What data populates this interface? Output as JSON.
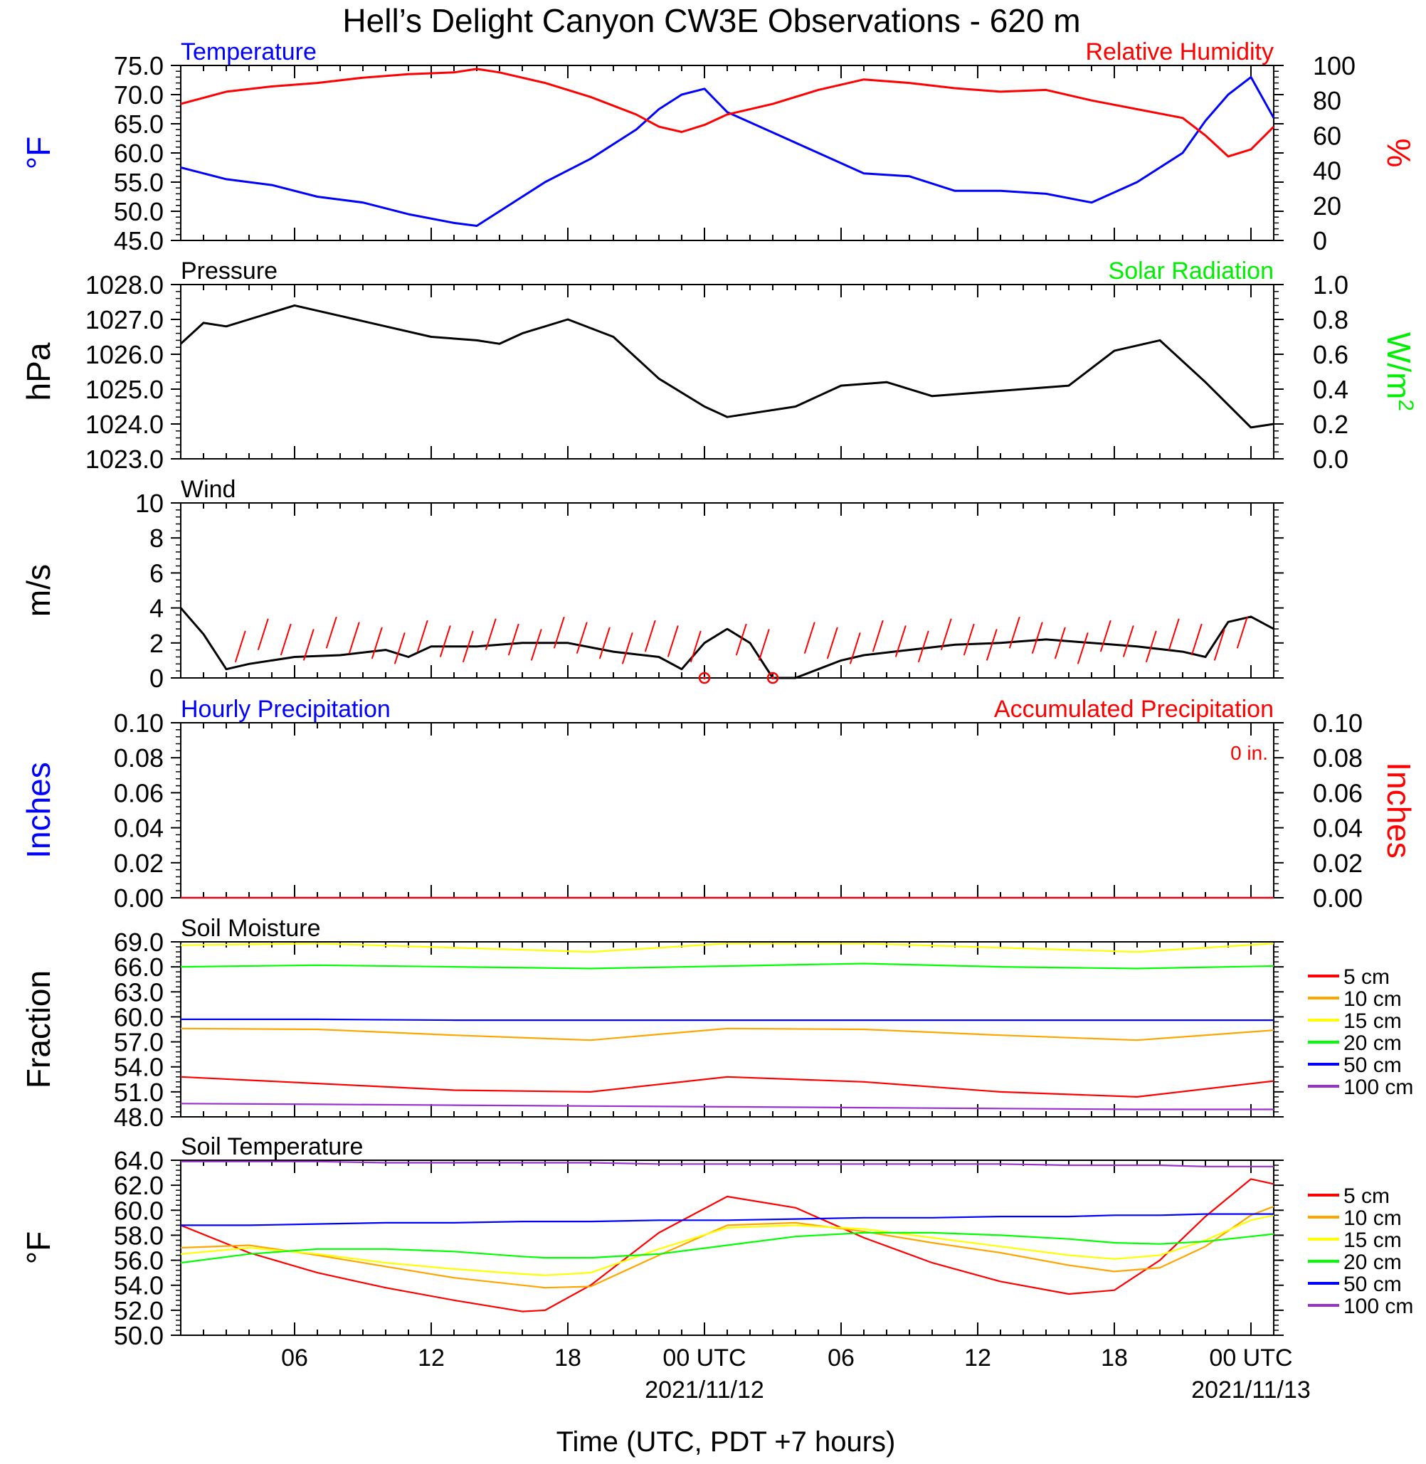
{
  "figure": {
    "title": "Hell’s Delight Canyon CW3E Observations - 620 m",
    "xlabel": "Time (UTC, PDT +7 hours)",
    "x_ticks": [
      "06",
      "12",
      "18",
      "00 UTC",
      "06",
      "12",
      "18",
      "00 UTC"
    ],
    "dates": [
      "2021/11/12",
      "2021/11/13"
    ]
  },
  "chart_data": [
    {
      "type": "line",
      "title_left": "Temperature",
      "title_right": "Relative Humidity",
      "ylabel": "°F",
      "ylabel_right": "%",
      "ylim": [
        45,
        75
      ],
      "ylim_right": [
        0,
        100
      ],
      "y_ticks": [
        "75.0",
        "70.0",
        "65.0",
        "60.0",
        "55.0",
        "50.0",
        "45.0"
      ],
      "y_ticks_right": [
        "100",
        "80",
        "60",
        "40",
        "20",
        "0"
      ],
      "x_hours": [
        1,
        3,
        5,
        7,
        9,
        11,
        13,
        14,
        15,
        17,
        19,
        21,
        22,
        23,
        24,
        25,
        27,
        29,
        31,
        33,
        35,
        37,
        39,
        41,
        43,
        45,
        46,
        47,
        48,
        49
      ],
      "series": [
        {
          "name": "Temperature",
          "color": "#0000ff",
          "axis": "left",
          "values": [
            57.5,
            55.5,
            54.5,
            52.5,
            51.5,
            49.5,
            48.0,
            47.5,
            50.0,
            55.0,
            59.0,
            64.0,
            67.5,
            70.0,
            71.0,
            67.0,
            63.5,
            60.0,
            56.5,
            56.0,
            53.5,
            53.5,
            53.0,
            51.5,
            55.0,
            60.0,
            65.5,
            70.0,
            73.0,
            66.0
          ]
        },
        {
          "name": "Relative Humidity",
          "color": "#ff0000",
          "axis": "right",
          "values": [
            78,
            85,
            88,
            90,
            93,
            95,
            96,
            98,
            96,
            90,
            82,
            72,
            65,
            62,
            66,
            72,
            78,
            86,
            92,
            90,
            87,
            85,
            86,
            80,
            75,
            70,
            60,
            48,
            52,
            65
          ]
        }
      ]
    },
    {
      "type": "line",
      "title_left": "Pressure",
      "title_right": "Solar Radiation",
      "ylabel": "hPa",
      "ylabel_right": "W/m",
      "ylabel_right_sup": "2",
      "ylim": [
        1023,
        1028
      ],
      "ylim_right": [
        0,
        1
      ],
      "y_ticks": [
        "1028.0",
        "1027.0",
        "1026.0",
        "1025.0",
        "1024.0",
        "1023.0"
      ],
      "y_ticks_right": [
        "1.0",
        "0.8",
        "0.6",
        "0.4",
        "0.2",
        "0.0"
      ],
      "x_hours": [
        1,
        2,
        3,
        4,
        6,
        8,
        10,
        12,
        14,
        15,
        16,
        18,
        20,
        22,
        24,
        25,
        26,
        28,
        30,
        32,
        34,
        36,
        38,
        40,
        42,
        44,
        46,
        48,
        49
      ],
      "series": [
        {
          "name": "Pressure",
          "color": "#000000",
          "axis": "left",
          "values": [
            1026.3,
            1026.9,
            1026.8,
            1027.0,
            1027.4,
            1027.1,
            1026.8,
            1026.5,
            1026.4,
            1026.3,
            1026.6,
            1027.0,
            1026.5,
            1025.3,
            1024.5,
            1024.2,
            1024.3,
            1024.5,
            1025.1,
            1025.2,
            1024.8,
            1024.9,
            1025.0,
            1025.1,
            1026.1,
            1026.4,
            1025.2,
            1023.9,
            1024.0
          ]
        }
      ]
    },
    {
      "type": "line",
      "title_left": "Wind",
      "ylabel": "m/s",
      "ylim": [
        0,
        10
      ],
      "y_ticks": [
        "10",
        "8",
        "6",
        "4",
        "2",
        "0"
      ],
      "x_hours": [
        1,
        2,
        3,
        4,
        6,
        8,
        10,
        11,
        12,
        14,
        16,
        18,
        20,
        22,
        23,
        24,
        25,
        26,
        27,
        28,
        29,
        30,
        31,
        33,
        35,
        37,
        39,
        41,
        43,
        45,
        46,
        47,
        48,
        49
      ],
      "series": [
        {
          "name": "Wind",
          "color": "#000000",
          "axis": "left",
          "values": [
            4.0,
            2.5,
            0.5,
            0.8,
            1.2,
            1.3,
            1.6,
            1.2,
            1.8,
            1.8,
            2.0,
            2.0,
            1.5,
            1.2,
            0.5,
            2.0,
            2.8,
            2.0,
            0.0,
            0.0,
            0.5,
            1.0,
            1.3,
            1.6,
            1.9,
            2.0,
            2.2,
            2.0,
            1.8,
            1.5,
            1.2,
            3.2,
            3.5,
            2.8
          ]
        }
      ],
      "barbs_color": "#ff0000"
    },
    {
      "type": "line",
      "title_left": "Hourly Precipitation",
      "title_right": "Accumulated Precipitation",
      "annotation": "0 in.",
      "ylabel": "Inches",
      "ylabel_right": "Inches",
      "ylim": [
        0,
        0.1
      ],
      "ylim_right": [
        0,
        0.1
      ],
      "y_ticks": [
        "0.10",
        "0.08",
        "0.06",
        "0.04",
        "0.02",
        "0.00"
      ],
      "y_ticks_right": [
        "0.10",
        "0.08",
        "0.06",
        "0.04",
        "0.02",
        "0.00"
      ],
      "x_hours": [
        1,
        49
      ],
      "series": [
        {
          "name": "Hourly Precipitation",
          "color": "#0000ff",
          "axis": "left",
          "values": [
            0,
            0
          ]
        },
        {
          "name": "Accumulated Precipitation",
          "color": "#ff0000",
          "axis": "right",
          "values": [
            0,
            0
          ]
        }
      ]
    },
    {
      "type": "line",
      "title_left": "Soil Moisture",
      "ylabel": "Fraction",
      "ylim": [
        48,
        69
      ],
      "y_ticks": [
        "69.0",
        "66.0",
        "63.0",
        "60.0",
        "57.0",
        "54.0",
        "51.0",
        "48.0"
      ],
      "x_hours": [
        1,
        7,
        13,
        19,
        25,
        31,
        37,
        43,
        49
      ],
      "series": [
        {
          "name": "5 cm",
          "color": "#ff0000",
          "values": [
            52.8,
            52.0,
            51.2,
            51.0,
            52.8,
            52.2,
            51.0,
            50.4,
            52.3
          ]
        },
        {
          "name": "10 cm",
          "color": "#ffa500",
          "values": [
            58.6,
            58.5,
            57.8,
            57.2,
            58.6,
            58.5,
            57.8,
            57.2,
            58.4
          ]
        },
        {
          "name": "15 cm",
          "color": "#ffff00",
          "values": [
            68.6,
            68.8,
            68.3,
            67.8,
            68.8,
            68.8,
            68.3,
            67.8,
            68.8
          ]
        },
        {
          "name": "20 cm",
          "color": "#00ff00",
          "values": [
            66.0,
            66.2,
            66.0,
            65.8,
            66.1,
            66.4,
            66.0,
            65.8,
            66.1
          ]
        },
        {
          "name": "50 cm",
          "color": "#0000ff",
          "values": [
            59.7,
            59.7,
            59.6,
            59.6,
            59.6,
            59.6,
            59.6,
            59.6,
            59.6
          ]
        },
        {
          "name": "100 cm",
          "color": "#9932cc",
          "values": [
            49.6,
            49.5,
            49.4,
            49.3,
            49.2,
            49.1,
            49.0,
            48.9,
            48.9
          ]
        }
      ]
    },
    {
      "type": "line",
      "title_left": "Soil Temperature",
      "ylabel": "°F",
      "ylim": [
        50,
        64
      ],
      "y_ticks": [
        "64.0",
        "62.0",
        "60.0",
        "58.0",
        "56.0",
        "54.0",
        "52.0",
        "50.0"
      ],
      "x_hours": [
        1,
        4,
        7,
        10,
        13,
        16,
        17,
        19,
        22,
        25,
        28,
        31,
        34,
        37,
        40,
        42,
        44,
        46,
        48,
        49
      ],
      "series": [
        {
          "name": "5 cm",
          "color": "#ff0000",
          "values": [
            58.8,
            56.6,
            55.0,
            53.8,
            52.8,
            51.9,
            52.0,
            54.0,
            58.2,
            61.1,
            60.2,
            57.8,
            55.8,
            54.3,
            53.3,
            53.6,
            56.0,
            59.5,
            62.5,
            62.1
          ]
        },
        {
          "name": "10 cm",
          "color": "#ffa500",
          "values": [
            57.0,
            57.2,
            56.4,
            55.5,
            54.6,
            54.0,
            53.8,
            53.9,
            56.4,
            58.8,
            59.0,
            58.3,
            57.4,
            56.6,
            55.6,
            55.1,
            55.4,
            57.1,
            59.6,
            60.3
          ]
        },
        {
          "name": "15 cm",
          "color": "#ffff00",
          "values": [
            56.5,
            57.0,
            56.5,
            55.8,
            55.3,
            54.9,
            54.8,
            55.0,
            56.9,
            58.6,
            58.8,
            58.5,
            57.8,
            57.1,
            56.4,
            56.1,
            56.4,
            57.6,
            59.2,
            59.6
          ]
        },
        {
          "name": "20 cm",
          "color": "#00ff00",
          "values": [
            55.8,
            56.5,
            56.9,
            56.9,
            56.7,
            56.3,
            56.2,
            56.2,
            56.5,
            57.2,
            57.9,
            58.2,
            58.2,
            58.0,
            57.7,
            57.4,
            57.3,
            57.5,
            57.9,
            58.1
          ]
        },
        {
          "name": "50 cm",
          "color": "#0000ff",
          "values": [
            58.8,
            58.8,
            58.9,
            59.0,
            59.0,
            59.1,
            59.1,
            59.1,
            59.2,
            59.2,
            59.3,
            59.4,
            59.4,
            59.5,
            59.5,
            59.6,
            59.6,
            59.7,
            59.7,
            59.7
          ]
        },
        {
          "name": "100 cm",
          "color": "#9932cc",
          "values": [
            63.9,
            63.9,
            63.9,
            63.8,
            63.8,
            63.8,
            63.8,
            63.8,
            63.7,
            63.7,
            63.7,
            63.7,
            63.7,
            63.7,
            63.6,
            63.6,
            63.6,
            63.5,
            63.5,
            63.5
          ]
        }
      ]
    }
  ]
}
